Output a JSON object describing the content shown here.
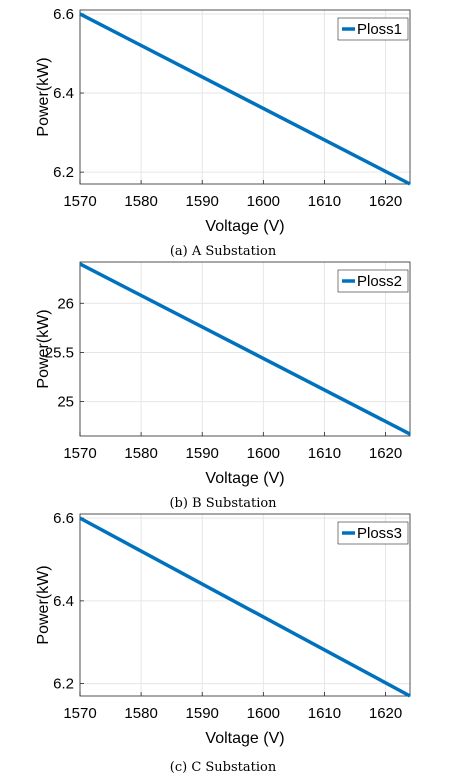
{
  "chart_data": [
    {
      "type": "line",
      "caption": "(a) A Substation",
      "xlabel": "Voltage (V)",
      "ylabel": "Power(kW)",
      "xlim": [
        1570,
        1624
      ],
      "ylim": [
        6.17,
        6.61
      ],
      "xticks": [
        "1570",
        "1580",
        "1590",
        "1600",
        "1610",
        "1620"
      ],
      "yticks": [
        "6.2",
        "6.4",
        "6.6"
      ],
      "grid": true,
      "legend_position": "top-right",
      "series": [
        {
          "name": "Ploss1",
          "color": "#0072BD",
          "x": [
            1570,
            1624
          ],
          "y": [
            6.6,
            6.17
          ]
        }
      ]
    },
    {
      "type": "line",
      "caption": "(b) B Substation",
      "xlabel": "Voltage (V)",
      "ylabel": "Power(kW)",
      "xlim": [
        1570,
        1624
      ],
      "ylim": [
        24.65,
        26.42
      ],
      "xticks": [
        "1570",
        "1580",
        "1590",
        "1600",
        "1610",
        "1620"
      ],
      "yticks": [
        "25",
        "25.5",
        "26"
      ],
      "grid": true,
      "legend_position": "top-right",
      "series": [
        {
          "name": "Ploss2",
          "color": "#0072BD",
          "x": [
            1570,
            1624
          ],
          "y": [
            26.4,
            24.67
          ]
        }
      ]
    },
    {
      "type": "line",
      "caption": "(c) C Substation",
      "xlabel": "Voltage (V)",
      "ylabel": "Power(kW)",
      "xlim": [
        1570,
        1624
      ],
      "ylim": [
        6.17,
        6.61
      ],
      "xticks": [
        "1570",
        "1580",
        "1590",
        "1600",
        "1610",
        "1620"
      ],
      "yticks": [
        "6.2",
        "6.4",
        "6.6"
      ],
      "grid": true,
      "legend_position": "top-right",
      "series": [
        {
          "name": "Ploss3",
          "color": "#0072BD",
          "x": [
            1570,
            1624
          ],
          "y": [
            6.6,
            6.17
          ]
        }
      ]
    }
  ]
}
